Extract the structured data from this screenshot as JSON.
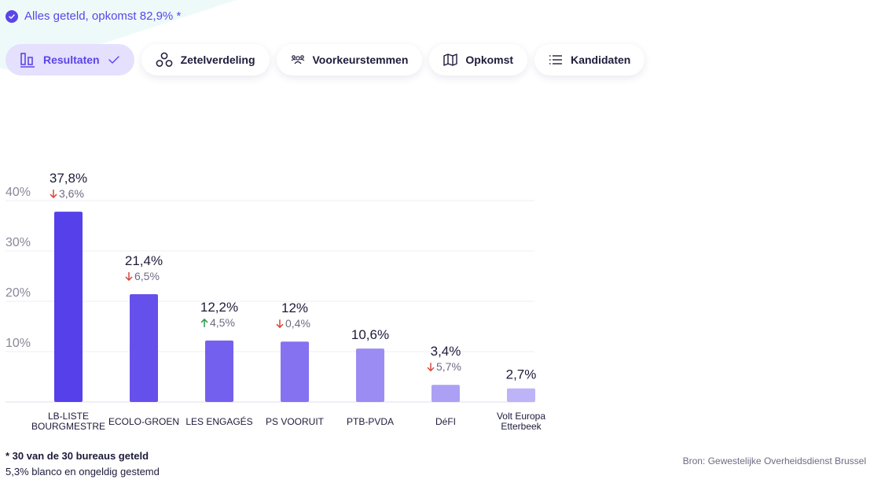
{
  "status": {
    "icon": "check-circle-icon",
    "text": "Alles geteld, opkomst 82,9% *",
    "color": "#5a45e8"
  },
  "tabs": [
    {
      "label": "Resultaten",
      "icon": "bar-chart-icon",
      "active": true
    },
    {
      "label": "Zetelverdeling",
      "icon": "circles-icon",
      "active": false
    },
    {
      "label": "Voorkeurstemmen",
      "icon": "people-icon",
      "active": false
    },
    {
      "label": "Opkomst",
      "icon": "map-icon",
      "active": false
    },
    {
      "label": "Kandidaten",
      "icon": "list-icon",
      "active": false
    }
  ],
  "chart_data": {
    "type": "bar",
    "title": "",
    "xlabel": "",
    "ylabel": "",
    "ylim": [
      0,
      40
    ],
    "grid": true,
    "yticks": [
      10,
      20,
      30,
      40
    ],
    "ytick_labels": [
      "10%",
      "20%",
      "30%",
      "40%"
    ],
    "categories": [
      "LB-LISTE BOURGMESTRE",
      "ECOLO-GROEN",
      "LES ENGAGÉS",
      "PS VOORUIT",
      "PTB-PVDA",
      "DéFI",
      "Volt Europa Etterbeek"
    ],
    "category_lines": [
      [
        "LB-LISTE",
        "BOURGMESTRE"
      ],
      [
        "ECOLO-GROEN"
      ],
      [
        "LES ENGAGÉS"
      ],
      [
        "PS VOORUIT"
      ],
      [
        "PTB-PVDA"
      ],
      [
        "DéFI"
      ],
      [
        "Volt Europa",
        "Etterbeek"
      ]
    ],
    "values": [
      37.8,
      21.4,
      12.2,
      12.0,
      10.6,
      3.4,
      2.7
    ],
    "value_labels": [
      "37,8%",
      "21,4%",
      "12,2%",
      "12%",
      "10,6%",
      "3,4%",
      "2,7%"
    ],
    "changes": [
      {
        "direction": "down",
        "label": "3,6%"
      },
      {
        "direction": "down",
        "label": "6,5%"
      },
      {
        "direction": "up",
        "label": "4,5%"
      },
      {
        "direction": "down",
        "label": "0,4%"
      },
      null,
      {
        "direction": "down",
        "label": "5,7%"
      },
      null
    ],
    "colors": [
      "#5640ea",
      "#6650ec",
      "#7460ee",
      "#8472f0",
      "#9a8cf2",
      "#aca0f4",
      "#bdb4f7"
    ],
    "up_color": "#2e9a4a",
    "down_color": "#d9463b"
  },
  "notes": {
    "counted": "* 30 van de 30 bureaus geteld",
    "blank": "5,3% blanco en ongeldig gestemd"
  },
  "source": "Bron: Gewestelijke Overheidsdienst Brussel"
}
